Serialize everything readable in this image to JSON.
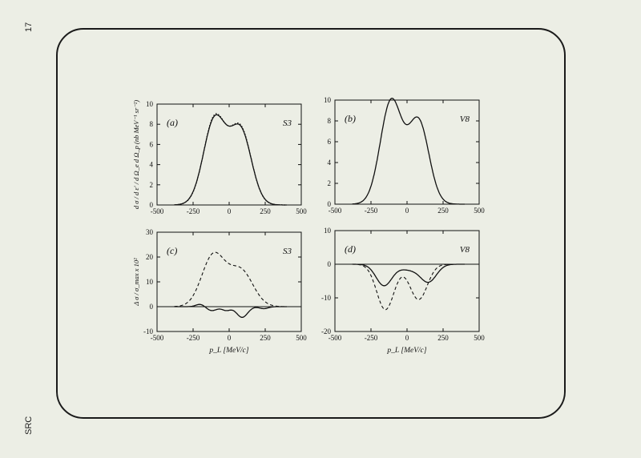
{
  "page": {
    "number": "17",
    "side_label": "SRC"
  },
  "chart_data": [
    {
      "type": "line",
      "panel_label": "(a)",
      "model_label": "S3",
      "ylabel": "d σ / d ε' / d Ω_e d Ω_p (nb MeV⁻¹ sr⁻²)",
      "xlabel": "",
      "xlim": [
        -500,
        500
      ],
      "ylim": [
        0,
        10
      ],
      "xticks": [
        -500,
        -250,
        0,
        250,
        500
      ],
      "yticks": [
        0,
        2,
        4,
        6,
        8,
        10
      ],
      "zero_line": false,
      "curve_params": {
        "full": [
          [
            -100,
            8.45,
            78
          ],
          [
            80,
            7.25,
            75
          ]
        ],
        "ref": [
          [
            -100,
            8.6,
            77
          ],
          [
            80,
            7.4,
            74
          ]
        ]
      },
      "series": [
        {
          "style": "solid",
          "values_at": [
            -300,
            -200,
            -150,
            -100,
            -50,
            0,
            50,
            80,
            150,
            250
          ],
          "values": [
            0.3,
            3.7,
            7.2,
            8.4,
            7.0,
            5.6,
            6.8,
            7.3,
            4.9,
            0.6
          ]
        },
        {
          "style": "dotted",
          "values_at": [
            -300,
            -200,
            -150,
            -100,
            -50,
            0,
            50,
            80,
            150,
            250
          ],
          "values": [
            0.3,
            3.8,
            7.3,
            8.6,
            7.1,
            5.7,
            6.9,
            7.5,
            5.0,
            0.6
          ]
        }
      ]
    },
    {
      "type": "line",
      "panel_label": "(b)",
      "model_label": "V8",
      "ylabel": "",
      "xlabel": "",
      "xlim": [
        -500,
        500
      ],
      "ylim": [
        0,
        10
      ],
      "xticks": [
        -500,
        -250,
        0,
        250,
        500
      ],
      "yticks": [
        0,
        2,
        4,
        6,
        8,
        10
      ],
      "zero_line": false,
      "curve_params": {
        "full": [
          [
            -110,
            9.9,
            75
          ],
          [
            80,
            7.9,
            72
          ]
        ]
      },
      "series": [
        {
          "style": "solid",
          "values_at": [
            -300,
            -200,
            -150,
            -110,
            -50,
            0,
            50,
            80,
            150,
            250
          ],
          "values": [
            0.2,
            4.4,
            8.6,
            9.9,
            7.9,
            5.3,
            7.4,
            8.0,
            5.0,
            0.5
          ]
        }
      ]
    },
    {
      "type": "line",
      "panel_label": "(c)",
      "model_label": "S3",
      "ylabel": "Δ σ / σ_max x 10²",
      "xlabel": "p_L [MeV/c]",
      "xlim": [
        -500,
        500
      ],
      "ylim": [
        -10,
        30
      ],
      "xticks": [
        -500,
        -250,
        0,
        250,
        500
      ],
      "yticks": [
        -10,
        0,
        10,
        20,
        30
      ],
      "zero_line": true,
      "curve_params": {
        "dashed": [
          [
            -110,
            20.5,
            80
          ],
          [
            80,
            14.5,
            85
          ]
        ],
        "solid": [
          [
            -200,
            1.0,
            30
          ],
          [
            -120,
            -1.6,
            35
          ],
          [
            -20,
            -1.5,
            30
          ],
          [
            90,
            -4.3,
            38
          ],
          [
            240,
            -0.8,
            30
          ]
        ]
      },
      "series": [
        {
          "style": "dashed",
          "values_at": [
            -300,
            -200,
            -110,
            -50,
            0,
            80,
            150,
            250,
            350
          ],
          "values": [
            1.0,
            10.0,
            21.0,
            17.0,
            14.0,
            15.0,
            9.0,
            2.0,
            0.0
          ]
        },
        {
          "style": "solid",
          "values_at": [
            -300,
            -200,
            -120,
            -60,
            -20,
            30,
            90,
            150,
            250,
            350
          ],
          "values": [
            0.0,
            0.8,
            -1.6,
            -0.6,
            -1.5,
            -1.2,
            -4.3,
            -1.6,
            -0.8,
            0.0
          ]
        }
      ]
    },
    {
      "type": "line",
      "panel_label": "(d)",
      "model_label": "V8",
      "ylabel": "",
      "xlabel": "p_L [MeV/c]",
      "xlim": [
        -500,
        500
      ],
      "ylim": [
        -20,
        10
      ],
      "xticks": [
        -500,
        -250,
        0,
        250,
        500
      ],
      "yticks": [
        -20,
        -10,
        0,
        10
      ],
      "zero_line": true,
      "curve_params": {
        "dashed": [
          [
            -150,
            -13.5,
            60
          ],
          [
            80,
            -10.5,
            60
          ]
        ],
        "solid": [
          [
            -160,
            -6.3,
            55
          ],
          [
            20,
            -1.6,
            75
          ],
          [
            150,
            -5.0,
            55
          ]
        ]
      },
      "series": [
        {
          "style": "dashed",
          "values_at": [
            -300,
            -200,
            -150,
            -100,
            -30,
            0,
            50,
            80,
            150,
            250
          ],
          "values": [
            -1.0,
            -10.0,
            -13.5,
            -11.5,
            -7.5,
            -7.5,
            -10.0,
            -10.5,
            -7.0,
            -1.0
          ]
        },
        {
          "style": "solid",
          "values_at": [
            -300,
            -200,
            -160,
            -100,
            -30,
            20,
            80,
            150,
            250
          ],
          "values": [
            -0.3,
            -5.0,
            -6.3,
            -3.5,
            -2.0,
            -1.7,
            -3.0,
            -5.0,
            -0.8
          ]
        }
      ]
    }
  ]
}
